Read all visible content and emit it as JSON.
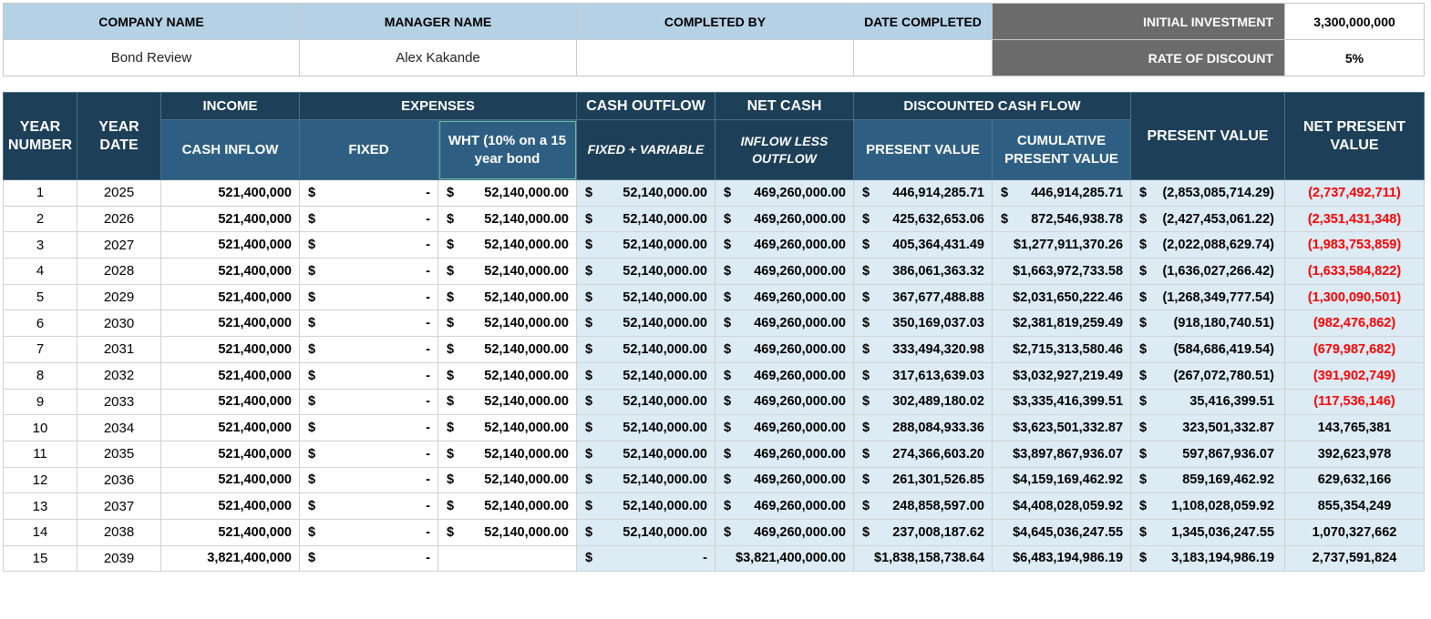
{
  "info": {
    "headers": [
      "COMPANY NAME",
      "MANAGER NAME",
      "COMPLETED BY",
      "DATE COMPLETED"
    ],
    "values": [
      "Bond Review",
      "Alex Kakande",
      "",
      ""
    ],
    "initial_investment_label": "INITIAL INVESTMENT",
    "initial_investment_value": "3,300,000,000",
    "rate_label": "RATE OF DISCOUNT",
    "rate_value": "5%"
  },
  "header": {
    "year_number": "YEAR NUMBER",
    "year_date": "YEAR DATE",
    "income": "INCOME",
    "cash_inflow": "CASH INFLOW",
    "expenses": "EXPENSES",
    "fixed": "FIXED",
    "wht": "WHT (10% on a 15 year bond",
    "cash_outflow": "CASH OUTFLOW",
    "fixed_variable": "FIXED + VARIABLE",
    "net_cash": "NET CASH",
    "inflow_less_outflow": "INFLOW LESS OUTFLOW",
    "discounted_cash_flow": "DISCOUNTED CASH FLOW",
    "present_value": "PRESENT VALUE",
    "cumulative_present_value": "CUMULATIVE PRESENT VALUE",
    "present_value_total": "PRESENT VALUE",
    "net_present_value": "NET PRESENT VALUE"
  },
  "currency_symbol": "$",
  "colors": {
    "negative": "#ff0000",
    "header_dark": "#1d3f58",
    "header_mid": "#2e5f83",
    "light_blue": "#dcebf4"
  },
  "rows": [
    {
      "num": "1",
      "year": "2025",
      "inflow": "521,400,000",
      "fixed": "-",
      "wht": "52,140,000.00",
      "outflow": "52,140,000.00",
      "net": "469,260,000.00",
      "pv": "446,914,285.71",
      "cpv": "446,914,285.71",
      "pvt": "(2,853,085,714.29)",
      "npv": "(2,737,492,711)",
      "neg": true
    },
    {
      "num": "2",
      "year": "2026",
      "inflow": "521,400,000",
      "fixed": "-",
      "wht": "52,140,000.00",
      "outflow": "52,140,000.00",
      "net": "469,260,000.00",
      "pv": "425,632,653.06",
      "cpv": "872,546,938.78",
      "pvt": "(2,427,453,061.22)",
      "npv": "(2,351,431,348)",
      "neg": true
    },
    {
      "num": "3",
      "year": "2027",
      "inflow": "521,400,000",
      "fixed": "-",
      "wht": "52,140,000.00",
      "outflow": "52,140,000.00",
      "net": "469,260,000.00",
      "pv": "405,364,431.49",
      "cpv": "$1,277,911,370.26",
      "pvt": "(2,022,088,629.74)",
      "npv": "(1,983,753,859)",
      "neg": true
    },
    {
      "num": "4",
      "year": "2028",
      "inflow": "521,400,000",
      "fixed": "-",
      "wht": "52,140,000.00",
      "outflow": "52,140,000.00",
      "net": "469,260,000.00",
      "pv": "386,061,363.32",
      "cpv": "$1,663,972,733.58",
      "pvt": "(1,636,027,266.42)",
      "npv": "(1,633,584,822)",
      "neg": true
    },
    {
      "num": "5",
      "year": "2029",
      "inflow": "521,400,000",
      "fixed": "-",
      "wht": "52,140,000.00",
      "outflow": "52,140,000.00",
      "net": "469,260,000.00",
      "pv": "367,677,488.88",
      "cpv": "$2,031,650,222.46",
      "pvt": "(1,268,349,777.54)",
      "npv": "(1,300,090,501)",
      "neg": true
    },
    {
      "num": "6",
      "year": "2030",
      "inflow": "521,400,000",
      "fixed": "-",
      "wht": "52,140,000.00",
      "outflow": "52,140,000.00",
      "net": "469,260,000.00",
      "pv": "350,169,037.03",
      "cpv": "$2,381,819,259.49",
      "pvt": "(918,180,740.51)",
      "npv": "(982,476,862)",
      "neg": true
    },
    {
      "num": "7",
      "year": "2031",
      "inflow": "521,400,000",
      "fixed": "-",
      "wht": "52,140,000.00",
      "outflow": "52,140,000.00",
      "net": "469,260,000.00",
      "pv": "333,494,320.98",
      "cpv": "$2,715,313,580.46",
      "pvt": "(584,686,419.54)",
      "npv": "(679,987,682)",
      "neg": true
    },
    {
      "num": "8",
      "year": "2032",
      "inflow": "521,400,000",
      "fixed": "-",
      "wht": "52,140,000.00",
      "outflow": "52,140,000.00",
      "net": "469,260,000.00",
      "pv": "317,613,639.03",
      "cpv": "$3,032,927,219.49",
      "pvt": "(267,072,780.51)",
      "npv": "(391,902,749)",
      "neg": true
    },
    {
      "num": "9",
      "year": "2033",
      "inflow": "521,400,000",
      "fixed": "-",
      "wht": "52,140,000.00",
      "outflow": "52,140,000.00",
      "net": "469,260,000.00",
      "pv": "302,489,180.02",
      "cpv": "$3,335,416,399.51",
      "pvt": "35,416,399.51",
      "npv": "(117,536,146)",
      "neg": true
    },
    {
      "num": "10",
      "year": "2034",
      "inflow": "521,400,000",
      "fixed": "-",
      "wht": "52,140,000.00",
      "outflow": "52,140,000.00",
      "net": "469,260,000.00",
      "pv": "288,084,933.36",
      "cpv": "$3,623,501,332.87",
      "pvt": "323,501,332.87",
      "npv": "143,765,381",
      "neg": false
    },
    {
      "num": "11",
      "year": "2035",
      "inflow": "521,400,000",
      "fixed": "-",
      "wht": "52,140,000.00",
      "outflow": "52,140,000.00",
      "net": "469,260,000.00",
      "pv": "274,366,603.20",
      "cpv": "$3,897,867,936.07",
      "pvt": "597,867,936.07",
      "npv": "392,623,978",
      "neg": false
    },
    {
      "num": "12",
      "year": "2036",
      "inflow": "521,400,000",
      "fixed": "-",
      "wht": "52,140,000.00",
      "outflow": "52,140,000.00",
      "net": "469,260,000.00",
      "pv": "261,301,526.85",
      "cpv": "$4,159,169,462.92",
      "pvt": "859,169,462.92",
      "npv": "629,632,166",
      "neg": false
    },
    {
      "num": "13",
      "year": "2037",
      "inflow": "521,400,000",
      "fixed": "-",
      "wht": "52,140,000.00",
      "outflow": "52,140,000.00",
      "net": "469,260,000.00",
      "pv": "248,858,597.00",
      "cpv": "$4,408,028,059.92",
      "pvt": "1,108,028,059.92",
      "npv": "855,354,249",
      "neg": false
    },
    {
      "num": "14",
      "year": "2038",
      "inflow": "521,400,000",
      "fixed": "-",
      "wht": "52,140,000.00",
      "outflow": "52,140,000.00",
      "net": "469,260,000.00",
      "pv": "237,008,187.62",
      "cpv": "$4,645,036,247.55",
      "pvt": "1,345,036,247.55",
      "npv": "1,070,327,662",
      "neg": false
    },
    {
      "num": "15",
      "year": "2039",
      "inflow": "3,821,400,000",
      "fixed": "-",
      "wht": "",
      "outflow": "-",
      "net": "$3,821,400,000.00",
      "pv": "$1,838,158,738.64",
      "cpv": "$6,483,194,986.19",
      "pvt": "3,183,194,986.19",
      "npv": "2,737,591,824",
      "neg": false
    }
  ]
}
